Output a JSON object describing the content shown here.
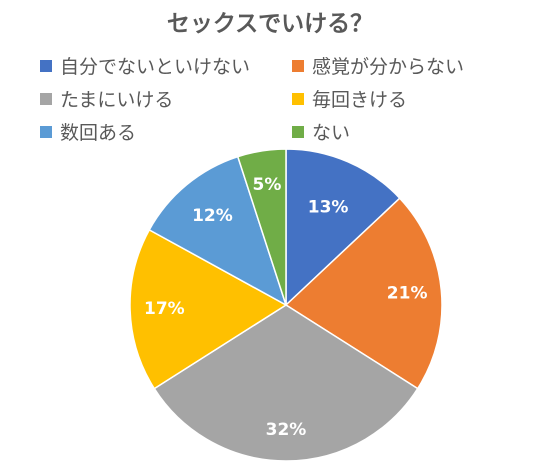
{
  "chart_data": {
    "type": "pie",
    "title": "セックスでいける？",
    "legend_position": "top",
    "slices": [
      {
        "label": "自分でないといけない",
        "value": 13,
        "display": "13%",
        "color": "#4472C4"
      },
      {
        "label": "感覚が分からない",
        "value": 21,
        "display": "21%",
        "color": "#ED7D31"
      },
      {
        "label": "たまにいける",
        "value": 32,
        "display": "32%",
        "color": "#A5A5A5"
      },
      {
        "label": "毎回きける",
        "value": 17,
        "display": "17%",
        "color": "#FFC000"
      },
      {
        "label": "数回ある",
        "value": 12,
        "display": "12%",
        "color": "#5B9BD5"
      },
      {
        "label": "ない",
        "value": 5,
        "display": "5%",
        "color": "#70AD47"
      }
    ]
  }
}
